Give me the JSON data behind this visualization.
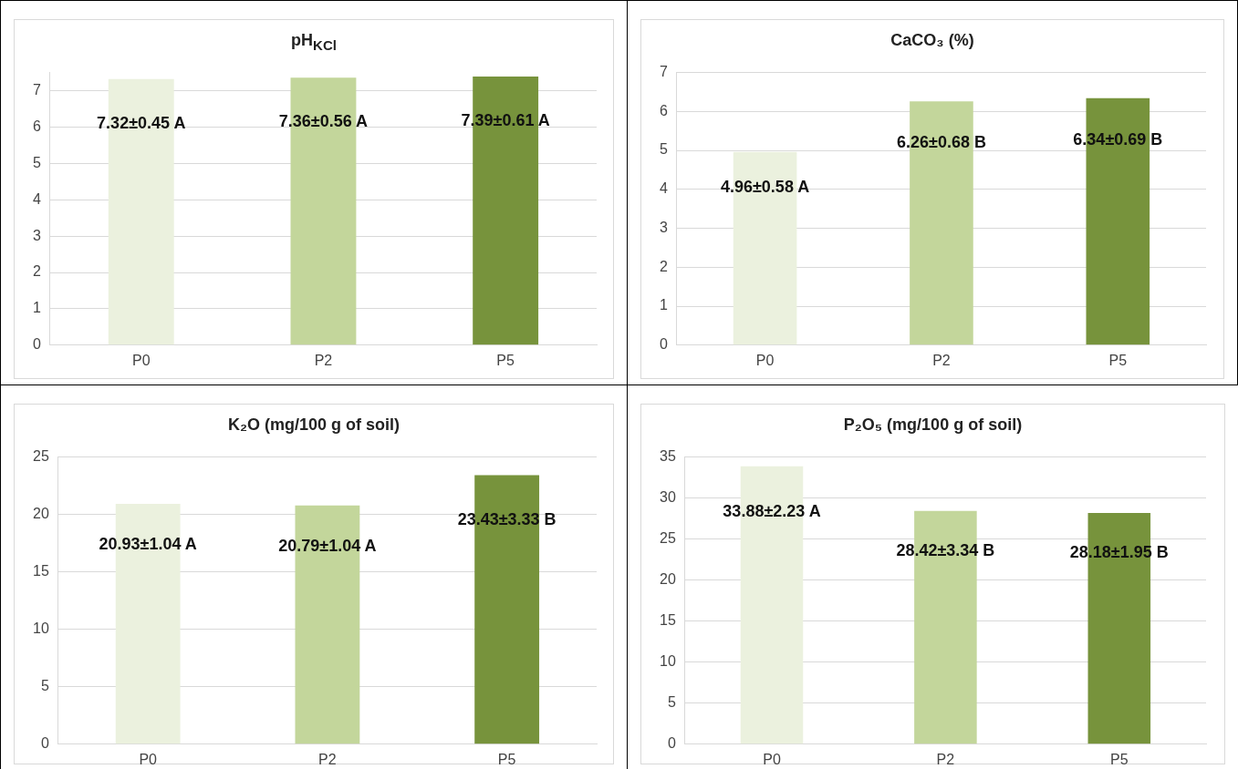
{
  "chart_data": [
    {
      "type": "bar",
      "title": "pH$_{KCl}$",
      "categories": [
        "P0",
        "P2",
        "P5"
      ],
      "values": [
        7.32,
        7.36,
        7.39
      ],
      "colors": [
        "#ebf1de",
        "#c3d69b",
        "#77933c"
      ],
      "value_labels": [
        "7.32±0.45 A",
        "7.36±0.56 A",
        "7.39±0.61 A"
      ],
      "ylim": [
        0,
        7.5
      ],
      "yticks": [
        0,
        1,
        2,
        3,
        4,
        5,
        6,
        7
      ],
      "grid": "y",
      "legend": false
    },
    {
      "type": "bar",
      "title": "CaCO₃ (%)",
      "categories": [
        "P0",
        "P2",
        "P5"
      ],
      "values": [
        4.96,
        6.26,
        6.34
      ],
      "colors": [
        "#ebf1de",
        "#c3d69b",
        "#77933c"
      ],
      "value_labels": [
        "4.96±0.58 A",
        "6.26±0.68 B",
        "6.34±0.69 B"
      ],
      "ylim": [
        0,
        7
      ],
      "yticks": [
        0,
        1,
        2,
        3,
        4,
        5,
        6,
        7
      ],
      "grid": "y",
      "legend": false
    },
    {
      "type": "bar",
      "title": "K₂O (mg/100 g of soil)",
      "categories": [
        "P0",
        "P2",
        "P5"
      ],
      "values": [
        20.93,
        20.79,
        23.43
      ],
      "colors": [
        "#ebf1de",
        "#c3d69b",
        "#77933c"
      ],
      "value_labels": [
        "20.93±1.04 A",
        "20.79±1.04 A",
        "23.43±3.33 B"
      ],
      "ylim": [
        0,
        25
      ],
      "yticks": [
        0,
        5,
        10,
        15,
        20,
        25
      ],
      "grid": "y",
      "legend": false
    },
    {
      "type": "bar",
      "title": "P₂O₅ (mg/100 g of soil)",
      "categories": [
        "P0",
        "P2",
        "P5"
      ],
      "values": [
        33.88,
        28.42,
        28.18
      ],
      "colors": [
        "#ebf1de",
        "#c3d69b",
        "#77933c"
      ],
      "value_labels": [
        "33.88±2.23 A",
        "28.42±3.34 B",
        "28.18±1.95 B"
      ],
      "ylim": [
        0,
        35
      ],
      "yticks": [
        0,
        5,
        10,
        15,
        20,
        25,
        30,
        35
      ],
      "grid": "y",
      "legend": false
    }
  ]
}
